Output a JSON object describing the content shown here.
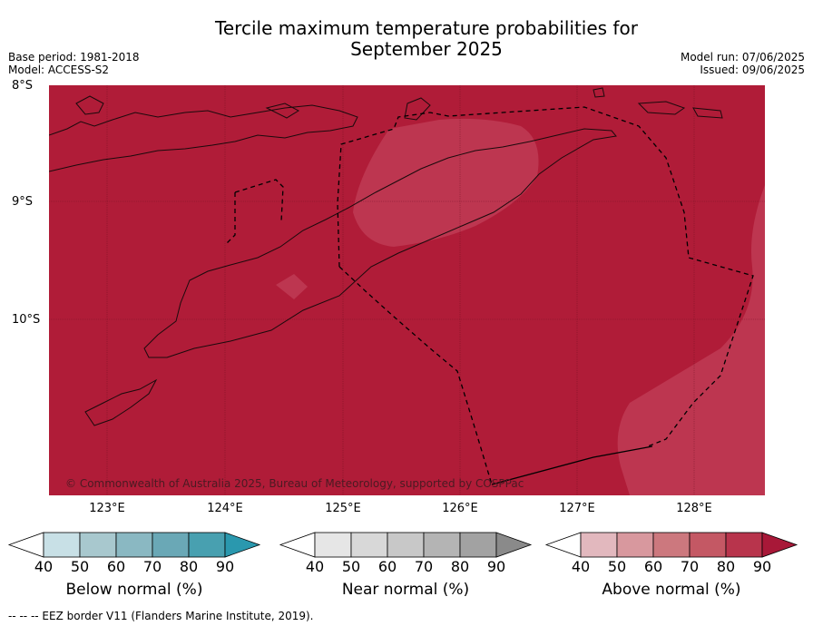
{
  "title_line1": "Tercile maximum temperature probabilities for",
  "title_line2": "September 2025",
  "base_period": "Base period: 1981-2018",
  "model": "Model: ACCESS-S2",
  "model_run": "Model run: 07/06/2025",
  "issued": "Issued: 09/06/2025",
  "map": {
    "lat_labels": [
      "8°S",
      "9°S",
      "10°S"
    ],
    "lon_labels": [
      "123°E",
      "124°E",
      "125°E",
      "126°E",
      "127°E",
      "128°E"
    ],
    "copyright": "© Commonwealth of Australia 2025, Bureau of Meteorology, supported by COSPPac",
    "fill_main_color": "#b01c38",
    "fill_light_color": "#c0384f"
  },
  "colorbars": [
    {
      "label": "Below normal (%)",
      "ticks": [
        "40",
        "50",
        "60",
        "70",
        "80",
        "90"
      ],
      "colors": [
        "#ffffff",
        "#c8e0e6",
        "#a8c8ce",
        "#8ab8c2",
        "#6aa8b6",
        "#48a0b0",
        "#2a98ae"
      ]
    },
    {
      "label": "Near normal (%)",
      "ticks": [
        "40",
        "50",
        "60",
        "70",
        "80",
        "90"
      ],
      "colors": [
        "#ffffff",
        "#e6e6e6",
        "#d8d8d8",
        "#c8c8c8",
        "#b4b4b4",
        "#a2a2a2",
        "#8a8a8a"
      ]
    },
    {
      "label": "Above normal (%)",
      "ticks": [
        "40",
        "50",
        "60",
        "70",
        "80",
        "90"
      ],
      "colors": [
        "#ffffff",
        "#e2b8be",
        "#d8989e",
        "#cc787e",
        "#c45864",
        "#b8344c",
        "#a81838"
      ]
    }
  ],
  "legend_note": "--  --  -- EEZ border V11 (Flanders Marine Institute, 2019)."
}
